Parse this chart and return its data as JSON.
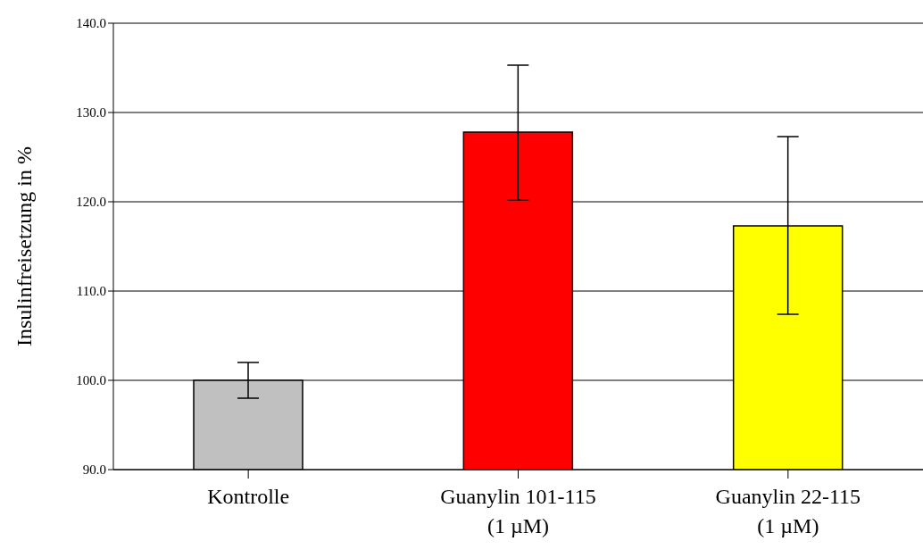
{
  "chart_data": {
    "type": "bar",
    "ylabel": "Insulinfreisetzung in %",
    "categories": [
      "Kontrolle",
      "Guanylin 101-115\n(1 µM)",
      "Guanylin 22-115\n(1 µM)"
    ],
    "values": [
      100.0,
      127.8,
      117.3
    ],
    "colors": [
      "#c0c0c0",
      "#ff0000",
      "#ffff00"
    ],
    "errors": [
      [
        98.0,
        102.0
      ],
      [
        120.2,
        135.3
      ],
      [
        107.4,
        127.3
      ]
    ],
    "ylim": [
      90,
      140
    ],
    "yticks": [
      {
        "value": 90,
        "label": "90.0"
      },
      {
        "value": 100,
        "label": "100.0"
      },
      {
        "value": 110,
        "label": "110.0"
      },
      {
        "value": 120,
        "label": "120.0"
      },
      {
        "value": 130,
        "label": "130.0"
      },
      {
        "value": 140,
        "label": "140.0"
      }
    ],
    "grid": "y",
    "legend": false
  }
}
